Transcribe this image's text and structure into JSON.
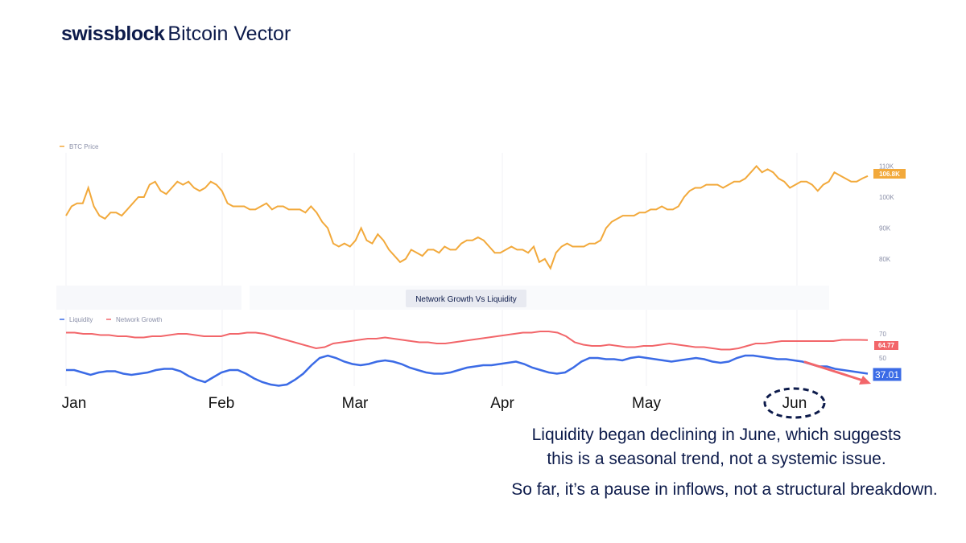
{
  "brand": {
    "name_bold": "swissblock",
    "name_light": "Bitcoin Vector"
  },
  "chart_data": [
    {
      "type": "line",
      "title": "",
      "legend": [
        "BTC Price"
      ],
      "legend_position": "top-left",
      "y_ticks": [
        "110K",
        "100K",
        "90K",
        "80K"
      ],
      "ylim": [
        74,
        113
      ],
      "x_tick_labels": [
        "Jan",
        "Feb",
        "Mar",
        "Apr",
        "May",
        "Jun"
      ],
      "last_value_label": "106.8K",
      "series": [
        {
          "name": "BTC Price",
          "color": "#f2a93b",
          "values": [
            94,
            97,
            98,
            98,
            103,
            97,
            94,
            93,
            95,
            95,
            94,
            96,
            98,
            100,
            100,
            104,
            105,
            102,
            101,
            103,
            105,
            104,
            105,
            103,
            102,
            103,
            105,
            104,
            102,
            98,
            97,
            97,
            97,
            96,
            96,
            97,
            98,
            96,
            97,
            97,
            96,
            96,
            96,
            95,
            97,
            95,
            92,
            90,
            85,
            84,
            85,
            84,
            86,
            90,
            86,
            85,
            88,
            86,
            83,
            81,
            79,
            80,
            83,
            82,
            81,
            83,
            83,
            82,
            84,
            83,
            83,
            85,
            86,
            86,
            87,
            86,
            84,
            82,
            82,
            83,
            84,
            83,
            83,
            82,
            84,
            79,
            80,
            77,
            82,
            84,
            85,
            84,
            84,
            84,
            85,
            85,
            86,
            90,
            92,
            93,
            94,
            94,
            94,
            95,
            95,
            96,
            96,
            97,
            96,
            96,
            97,
            100,
            102,
            103,
            103,
            104,
            104,
            104,
            103,
            104,
            105,
            105,
            106,
            108,
            110,
            108,
            109,
            108,
            106,
            105,
            103,
            104,
            105,
            105,
            104,
            102,
            104,
            105,
            108,
            107,
            106,
            105,
            105,
            106,
            106.8
          ]
        }
      ]
    },
    {
      "type": "line",
      "title": "Network Growth Vs Liquidity",
      "legend": [
        "Liquidity",
        "Network Growth"
      ],
      "legend_position": "top-left",
      "y_ticks": [
        "70",
        "50"
      ],
      "ylim": [
        20,
        80
      ],
      "x_tick_labels": [
        "Jan",
        "Feb",
        "Mar",
        "Apr",
        "May",
        "Jun"
      ],
      "series": [
        {
          "name": "Network Growth",
          "color": "#f2666a",
          "last_value_label": "64.77",
          "values": [
            71,
            71,
            70,
            70,
            69,
            69,
            68,
            68,
            67,
            67,
            68,
            68,
            69,
            70,
            70,
            69,
            68,
            68,
            68,
            70,
            70,
            71,
            71,
            70,
            68,
            66,
            64,
            62,
            60,
            58,
            59,
            62,
            63,
            64,
            65,
            66,
            66,
            67,
            66,
            65,
            64,
            63,
            63,
            62,
            62,
            63,
            64,
            65,
            66,
            67,
            68,
            69,
            70,
            71,
            71,
            72,
            72,
            71,
            68,
            63,
            61,
            60,
            60,
            61,
            60,
            59,
            59,
            60,
            60,
            61,
            62,
            61,
            60,
            59,
            59,
            58,
            57,
            57,
            58,
            60,
            62,
            62,
            63,
            64,
            64,
            64,
            64,
            64,
            64,
            64,
            65,
            65,
            65,
            64.77
          ]
        },
        {
          "name": "Liquidity",
          "color": "#3b6be6",
          "last_value_label": "37.01",
          "values": [
            40,
            40,
            38,
            36,
            38,
            39,
            39,
            37,
            36,
            37,
            38,
            40,
            41,
            41,
            39,
            35,
            32,
            30,
            34,
            38,
            40,
            40,
            37,
            33,
            30,
            28,
            27,
            28,
            32,
            37,
            44,
            50,
            52,
            50,
            47,
            45,
            44,
            45,
            47,
            48,
            47,
            45,
            42,
            40,
            38,
            37,
            37,
            38,
            40,
            42,
            43,
            44,
            44,
            45,
            46,
            47,
            45,
            42,
            40,
            38,
            37,
            38,
            42,
            47,
            50,
            50,
            49,
            49,
            48,
            50,
            51,
            50,
            49,
            48,
            47,
            48,
            49,
            50,
            49,
            47,
            46,
            47,
            50,
            52,
            52,
            51,
            50,
            49,
            49,
            48,
            47,
            45,
            43,
            43,
            41,
            40,
            39,
            38,
            37.01
          ]
        }
      ]
    }
  ],
  "annotations": {
    "circle_label": "Jun",
    "note_line1": "Liquidity began declining in June, which suggests",
    "note_line2": "this is a seasonal trend, not a systemic issue.",
    "note_line3": "So far, it’s a pause in inflows, not a structural breakdown."
  },
  "colors": {
    "brand": "#0d1b4b",
    "btc": "#f2a93b",
    "network": "#f2666a",
    "liquidity": "#3b6be6",
    "arrow": "#f2666a"
  }
}
